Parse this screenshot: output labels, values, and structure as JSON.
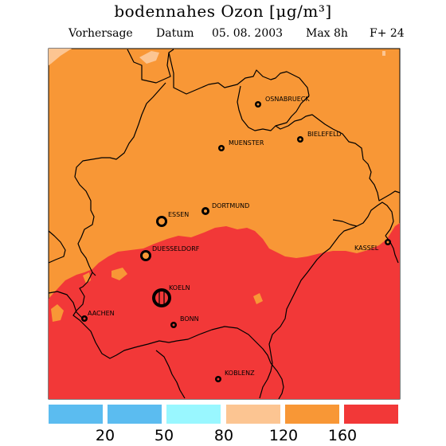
{
  "title": "bodennahes Ozon [μg/m³]",
  "subtitle": {
    "forecast": "Vorhersage",
    "date_label": "Datum",
    "date": "05. 08. 2003",
    "metric": "Max 8h",
    "lead": "F+ 24"
  },
  "colors": {
    "lt_20": "#5bbcf0",
    "c20_50": "#5bbcf0",
    "c50_80": "#99f7ff",
    "c80_120": "#fcc592",
    "c120_160": "#f89736",
    "gt_160": "#f23838",
    "border": "#000000"
  },
  "cities": [
    {
      "name": "OSNABRUECK"
    },
    {
      "name": "BIELEFELD"
    },
    {
      "name": "MUENSTER"
    },
    {
      "name": "DORTMUND"
    },
    {
      "name": "ESSEN"
    },
    {
      "name": "DUESSELDORF"
    },
    {
      "name": "KASSEL"
    },
    {
      "name": "KOELN"
    },
    {
      "name": "AACHEN"
    },
    {
      "name": "BONN"
    },
    {
      "name": "KOBLENZ"
    }
  ],
  "legend": {
    "ticks": [
      "20",
      "50",
      "80",
      "120",
      "160"
    ],
    "classes": [
      "<20",
      "20-50",
      "50-80",
      "80-120",
      "120-160",
      ">160"
    ]
  }
}
